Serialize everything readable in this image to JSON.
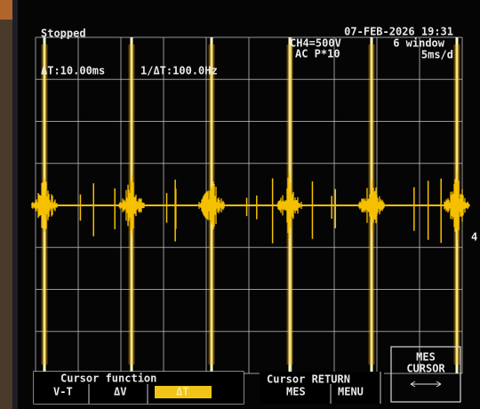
{
  "status": "Stopped",
  "datetime": "07-FEB-2026 19:31",
  "channel": "CH4=500V",
  "coupling": "AC P*10",
  "window": "6 window",
  "timebase": "5ms/d",
  "cursor_delta_t": "ΔT:10.00ms",
  "cursor_inverse": "1/ΔT:100.0Hz",
  "channel_marker": "4",
  "softkeys": {
    "cursor_function": {
      "title": "Cursor function",
      "options": [
        "V-T",
        "ΔV",
        "ΔT"
      ]
    },
    "cursor_return": {
      "title": "Cursor RETURN",
      "options": [
        "MES",
        "MENU"
      ]
    },
    "mes_cursor": {
      "label": [
        "MES",
        "CURSOR"
      ]
    }
  }
}
